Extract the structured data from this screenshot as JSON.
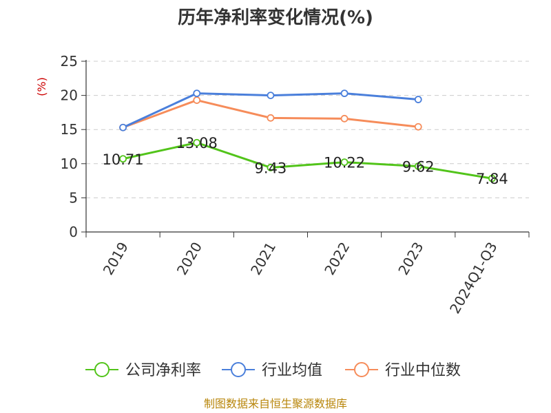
{
  "chart_data": {
    "type": "line",
    "title": "历年净利率变化情况(%)",
    "ylabel": "(%)",
    "xlabel": "",
    "categories": [
      "2019",
      "2020",
      "2021",
      "2022",
      "2023",
      "2024Q1-Q3"
    ],
    "yticks": [
      0,
      5,
      10,
      15,
      20,
      25
    ],
    "ylim": [
      0,
      25
    ],
    "grid": true,
    "legend_position": "bottom",
    "series": [
      {
        "name": "公司净利率",
        "color": "#52c41a",
        "values": [
          10.71,
          13.08,
          9.43,
          10.22,
          9.62,
          7.84
        ],
        "labels": [
          "10.71",
          "13.08",
          "9.43",
          "10.22",
          "9.62",
          "7.84"
        ]
      },
      {
        "name": "行业均值",
        "color": "#4a7fdb",
        "values": [
          15.3,
          20.3,
          20.0,
          20.3,
          19.4,
          null
        ]
      },
      {
        "name": "行业中位数",
        "color": "#f68c5a",
        "values": [
          15.3,
          19.3,
          16.7,
          16.6,
          15.4,
          null
        ]
      }
    ]
  },
  "footer": {
    "source": "制图数据来自恒生聚源数据库"
  }
}
